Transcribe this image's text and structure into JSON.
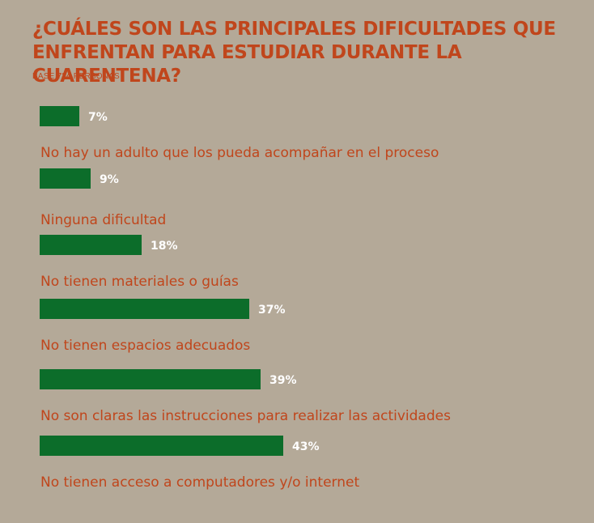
{
  "title": "¿CUÁLES SON LAS PRINCIPALES DIFICULTADES QUE ENFRENTAN PARA ESTUDIAR DURANTE LA CUARENTENA?",
  "base": {
    "prefix": "BASE",
    "n": "734",
    "suffix": "PERSONAS"
  },
  "colors": {
    "background": "#b4a998",
    "accent": "#c0461c",
    "bar": "#0c6d2a",
    "value_label": "#ffffff"
  },
  "chart_data": {
    "type": "bar",
    "orientation": "horizontal",
    "unit": "%",
    "categories": [
      "No hay un adulto que los pueda acompañar en el proceso",
      "Ninguna dificultad",
      "No tienen materiales o guías",
      "No tienen espacios adecuados",
      "No son claras las instrucciones para realizar las actividades",
      "No tienen acceso a computadores y/o internet"
    ],
    "values": [
      7,
      9,
      18,
      37,
      39,
      43
    ],
    "value_labels": [
      "7%",
      "9%",
      "18%",
      "37%",
      "39%",
      "43%"
    ],
    "title": "¿CUÁLES SON LAS PRINCIPALES DIFICULTADES QUE ENFRENTAN PARA ESTUDIAR DURANTE LA CUARENTENA?",
    "xlabel": "",
    "ylabel": "",
    "grid": false,
    "legend": "none"
  }
}
